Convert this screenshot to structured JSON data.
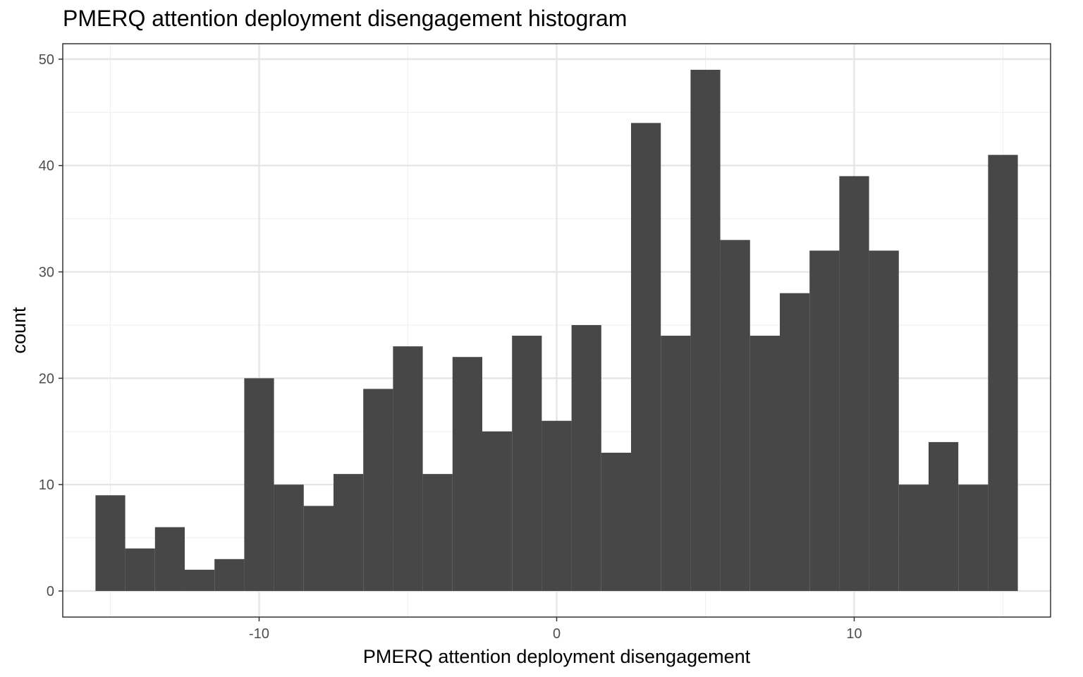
{
  "chart_data": {
    "type": "bar",
    "title": "PMERQ attention deployment disengagement histogram",
    "xlabel": "PMERQ attention deployment disengagement",
    "ylabel": "count",
    "xlim": [
      -16.6,
      16.6
    ],
    "ylim": [
      -2.45,
      51.45
    ],
    "x_ticks": [
      -10,
      0,
      10
    ],
    "y_ticks": [
      0,
      10,
      20,
      30,
      40,
      50
    ],
    "x_tick_labels": [
      "-10",
      "0",
      "10"
    ],
    "y_tick_labels": [
      "0",
      "10",
      "20",
      "30",
      "40",
      "50"
    ],
    "grid": true,
    "bin_width": 1,
    "bin_centers": [
      -15,
      -14,
      -13,
      -12,
      -11,
      -10,
      -9,
      -8,
      -7,
      -6,
      -5,
      -4,
      -3,
      -2,
      -1,
      0,
      1,
      2,
      3,
      4,
      5,
      6,
      7,
      8,
      9,
      10,
      11,
      12,
      13,
      14,
      15
    ],
    "values": [
      9,
      4,
      6,
      2,
      3,
      20,
      10,
      8,
      11,
      19,
      23,
      11,
      22,
      15,
      24,
      16,
      25,
      13,
      44,
      24,
      49,
      33,
      24,
      28,
      32,
      39,
      32,
      10,
      14,
      10,
      41
    ],
    "bar_color": "#474747",
    "grid_major_color": "#e6e6e6",
    "grid_minor_color": "#f0f0f0",
    "panel_border_color": "#333333"
  }
}
